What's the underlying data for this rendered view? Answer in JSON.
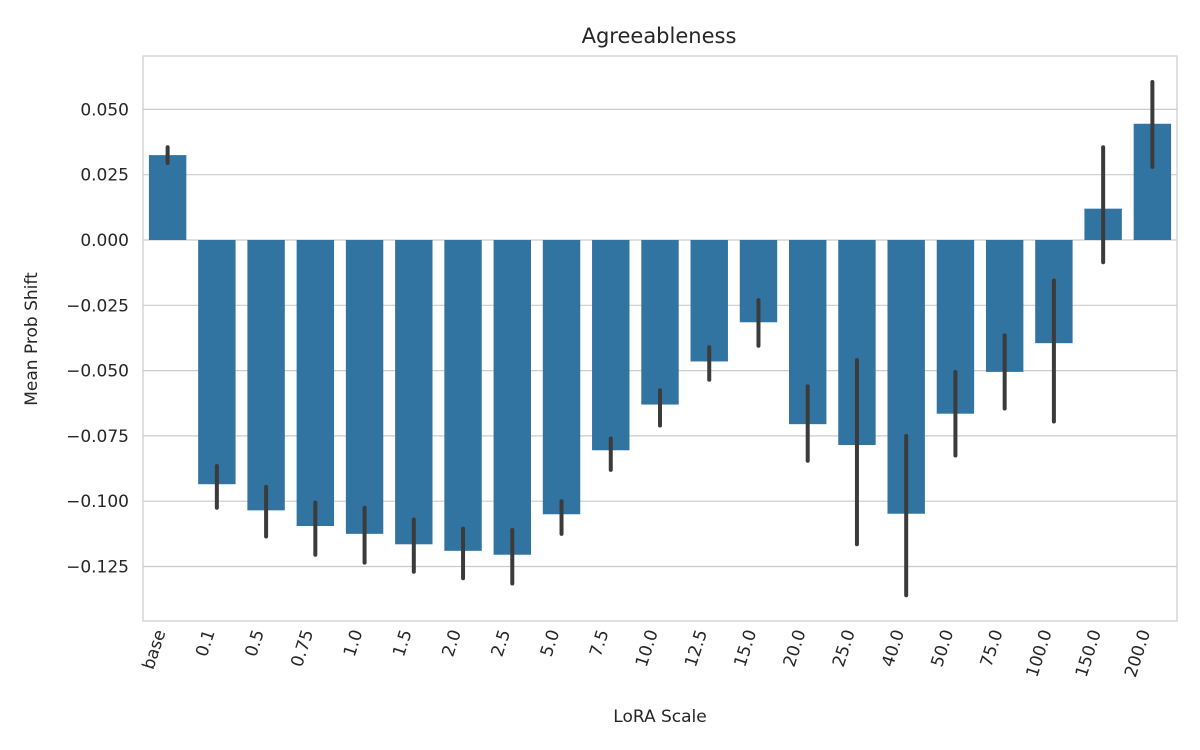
{
  "chart_data": {
    "type": "bar",
    "title": "Agreeableness",
    "xlabel": "LoRA Scale",
    "ylabel": "Mean Prob Shift",
    "categories": [
      "base",
      "0.1",
      "0.5",
      "0.75",
      "1.0",
      "1.5",
      "2.0",
      "2.5",
      "5.0",
      "7.5",
      "10.0",
      "12.5",
      "15.0",
      "20.0",
      "25.0",
      "40.0",
      "50.0",
      "75.0",
      "100.0",
      "150.0",
      "200.0"
    ],
    "values": [
      0.0325,
      -0.0935,
      -0.1035,
      -0.1095,
      -0.1125,
      -0.1165,
      -0.119,
      -0.1205,
      -0.105,
      -0.0805,
      -0.063,
      -0.0465,
      -0.0315,
      -0.0705,
      -0.0785,
      -0.1048,
      -0.0665,
      -0.0505,
      -0.0395,
      0.012,
      0.0445
    ],
    "error_low": [
      0.0295,
      -0.1025,
      -0.1135,
      -0.1205,
      -0.1235,
      -0.127,
      -0.1295,
      -0.1315,
      -0.1125,
      -0.088,
      -0.071,
      -0.0535,
      -0.0405,
      -0.0845,
      -0.1165,
      -0.136,
      -0.0825,
      -0.0645,
      -0.0695,
      -0.0085,
      0.028
    ],
    "error_high": [
      0.0355,
      -0.0865,
      -0.0945,
      -0.1005,
      -0.1025,
      -0.107,
      -0.1105,
      -0.111,
      -0.1,
      -0.076,
      -0.0575,
      -0.041,
      -0.023,
      -0.056,
      -0.046,
      -0.075,
      -0.0505,
      -0.0365,
      -0.0155,
      0.0355,
      0.0605
    ],
    "yticks": [
      "0.050",
      "0.025",
      "0.000",
      "−0.025",
      "−0.050",
      "−0.075",
      "−0.100",
      "−0.125"
    ],
    "ytick_values": [
      0.05,
      0.025,
      0.0,
      -0.025,
      -0.05,
      -0.075,
      -0.1,
      -0.125
    ],
    "ylim": [
      -0.1465,
      0.0705
    ],
    "grid": true,
    "colors": {
      "bar": "#3274a1",
      "errbar": "#3b3b3b",
      "grid": "#cccccc"
    }
  }
}
